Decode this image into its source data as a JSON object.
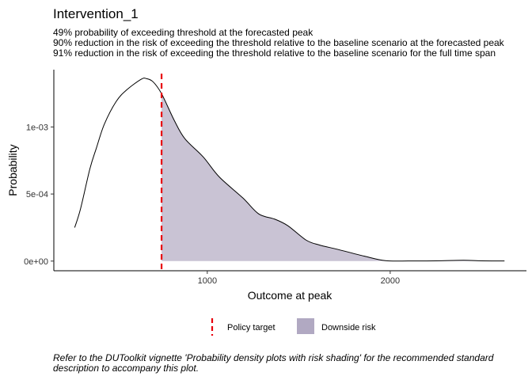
{
  "chart_data": {
    "type": "area",
    "title": "Intervention_1",
    "subtitle": [
      "49% probability of exceeding threshold at the forecasted peak",
      "90% reduction in the risk of exceeding the threshold relative to the baseline scenario at the forecasted peak",
      "91% reduction in the risk of exceeding the threshold relative to the baseline scenario for the full time span"
    ],
    "xlabel": "Outcome at peak",
    "ylabel": "Probability",
    "xlim": [
      161,
      2745
    ],
    "ylim": [
      -7.2e-05,
      0.001427
    ],
    "x_ticks": [
      {
        "value": 1000,
        "label": "1000"
      },
      {
        "value": 2000,
        "label": "2000"
      }
    ],
    "y_ticks": [
      {
        "value": 0,
        "label": "0e+00"
      },
      {
        "value": 0.0005,
        "label": "5e-04"
      },
      {
        "value": 0.001,
        "label": "1e-03"
      }
    ],
    "grid": false,
    "policy_target": 750,
    "density": {
      "x": [
        275,
        307,
        358,
        394,
        437,
        502,
        560,
        639,
        668,
        704,
        750,
        819,
        877,
        978,
        1065,
        1195,
        1281,
        1368,
        1440,
        1541,
        1613,
        1714,
        1858,
        1974,
        2100,
        2250,
        2400,
        2500,
        2625
      ],
      "y": [
        0.00025,
        0.00039,
        0.000687,
        0.000844,
        0.00102,
        0.00119,
        0.001277,
        0.001356,
        0.00136,
        0.001336,
        0.001248,
        0.00105,
        0.000913,
        0.000776,
        0.000628,
        0.00047,
        0.000352,
        0.000313,
        0.000264,
        0.000156,
        0.00012,
        8.7e-05,
        3.7e-05,
        3e-06,
        1e-06,
        2e-06,
        6e-06,
        2e-06,
        1e-06
      ]
    },
    "colors": {
      "line": "#000000",
      "policy_target": "#e8000b",
      "downside_fill": "#c9c3d4"
    },
    "legend": {
      "placement": "bottom",
      "items": [
        {
          "label": "Policy target",
          "kind": "dashed-line"
        },
        {
          "label": "Downside risk",
          "kind": "fill"
        }
      ]
    },
    "caption": [
      "Refer to the DUToolkit vignette 'Probability density plots with risk shading' for the recommended standard",
      "description to accompany this plot."
    ]
  }
}
